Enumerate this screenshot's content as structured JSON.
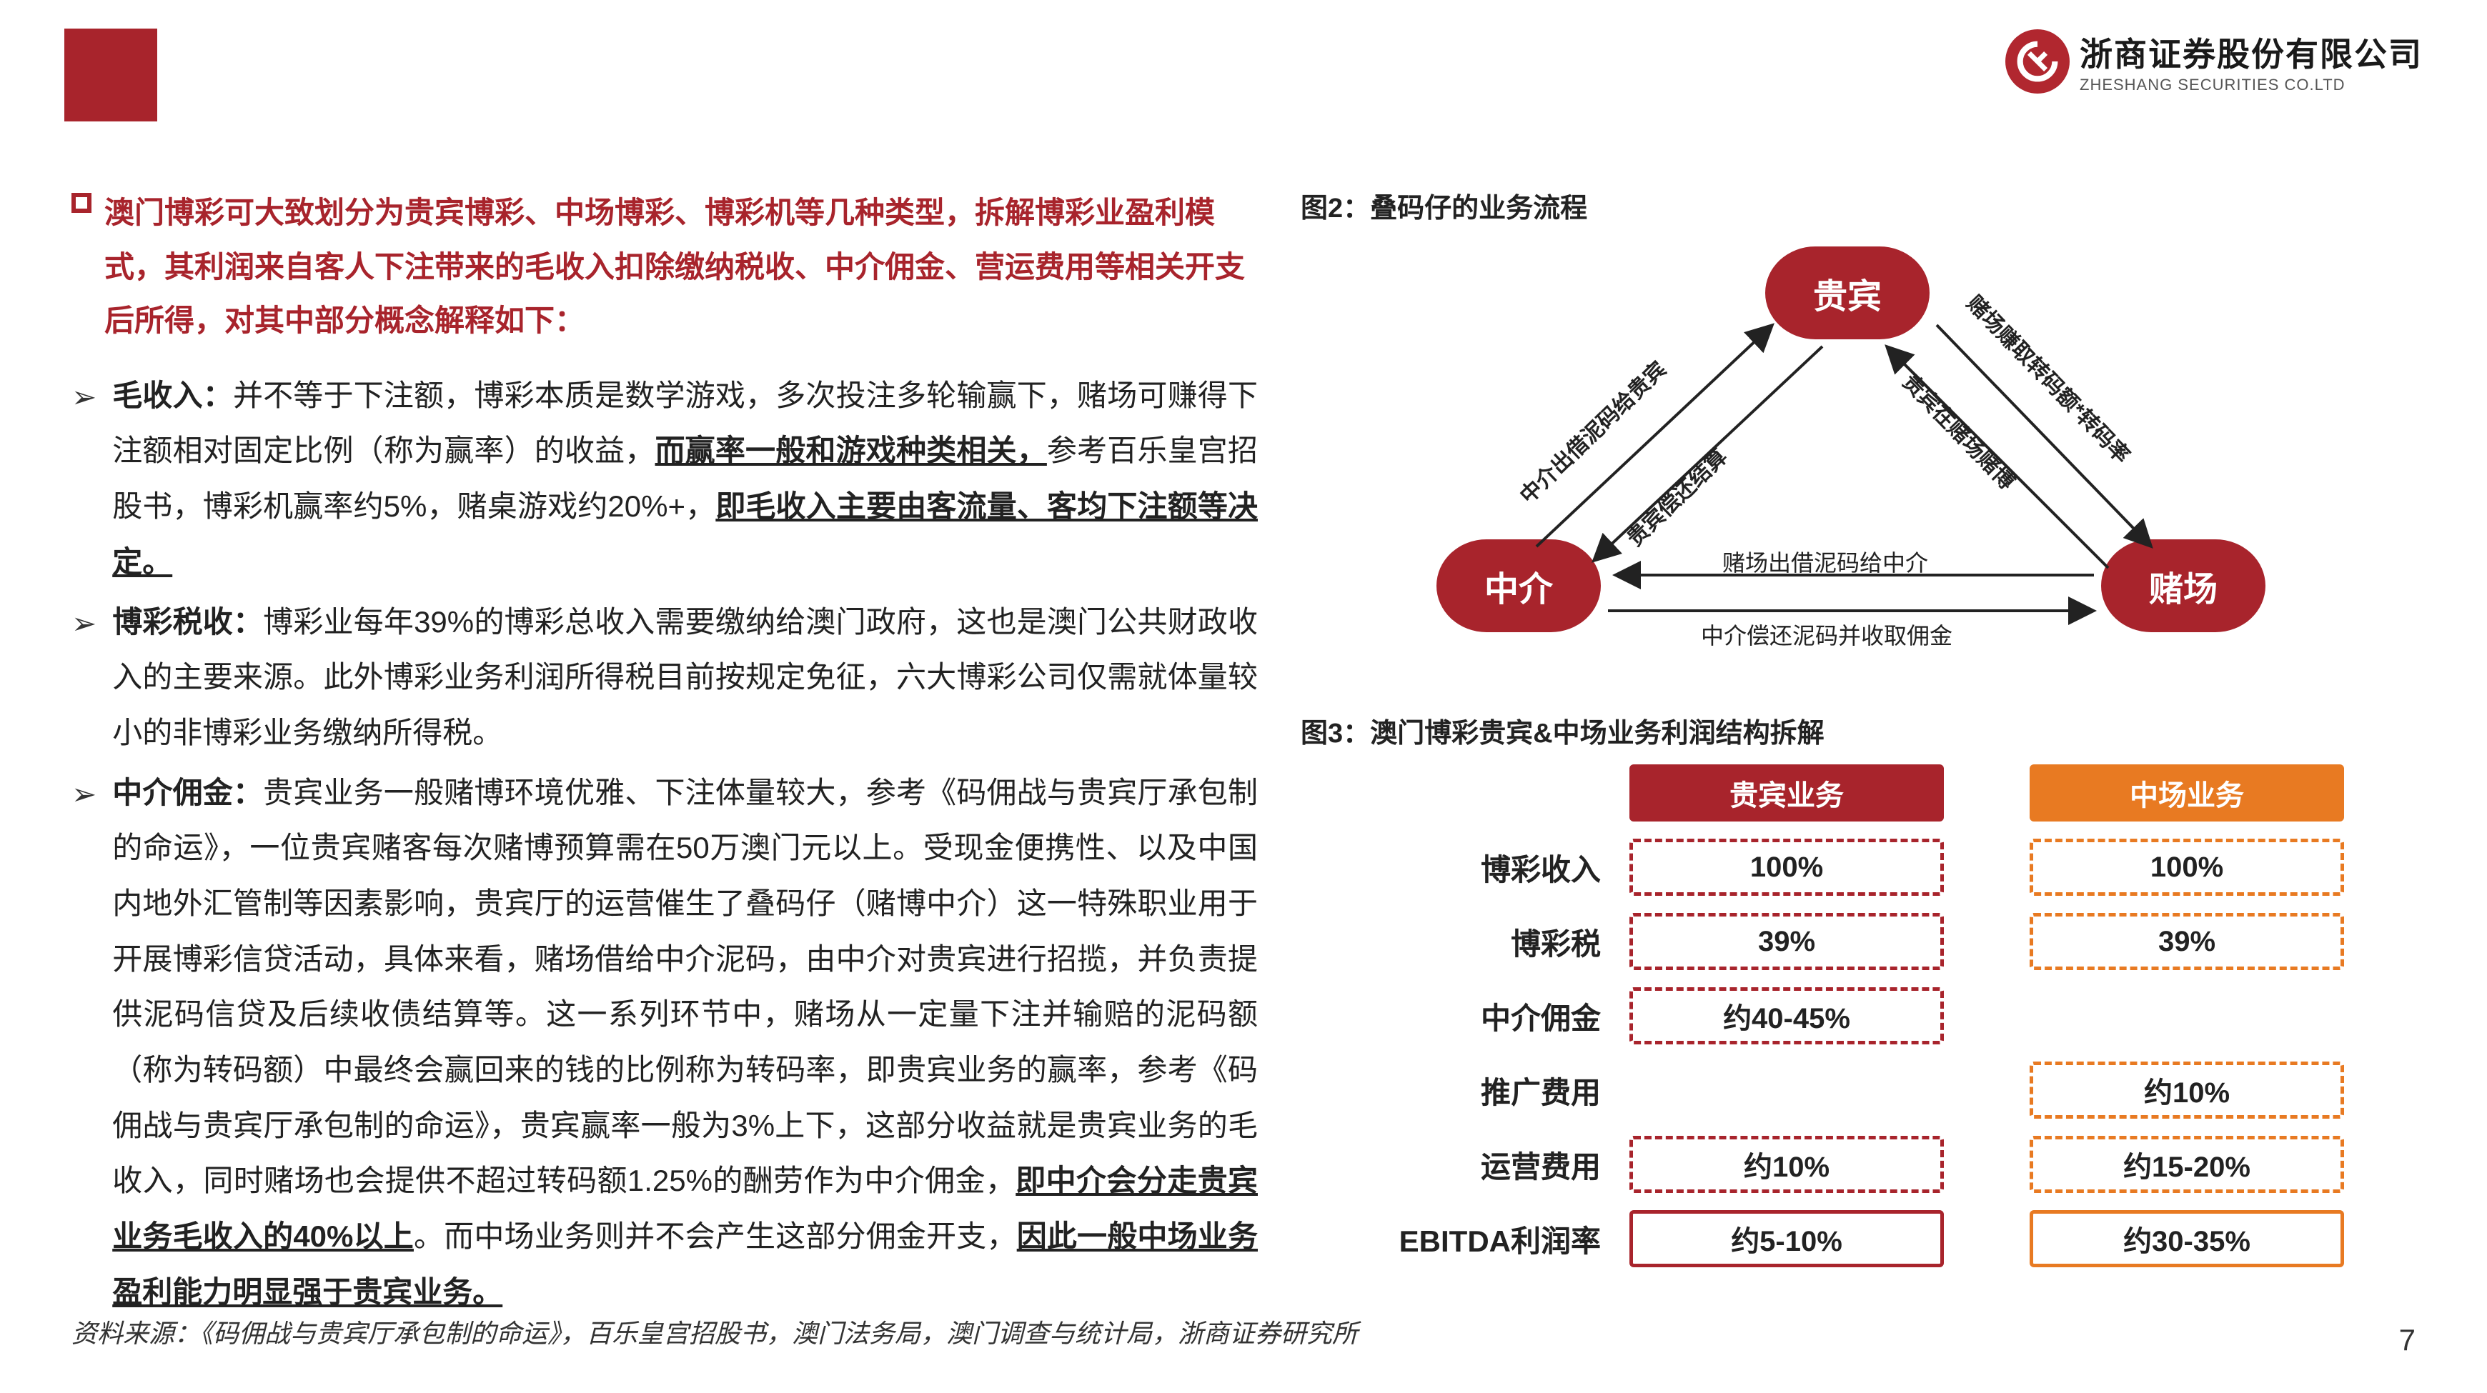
{
  "brand": {
    "cn": "浙商证券股份有限公司",
    "en": "ZHESHANG SECURITIES CO.LTD"
  },
  "intro": "澳门博彩可大致划分为贵宾博彩、中场博彩、博彩机等几种类型，拆解博彩业盈利模式，其利润来自客人下注带来的毛收入扣除缴纳税收、中介佣金、营运费用等相关开支后所得，对其中部分概念解释如下：",
  "bullets": {
    "b1": {
      "head": "毛收入：",
      "t1": "并不等于下注额，博彩本质是数学游戏，多次投注多轮输赢下，赌场可赚得下注额相对固定比例（称为赢率）的收益，",
      "u1": "而赢率一般和游戏种类相关，",
      "t2": "参考百乐皇宫招股书，博彩机赢率约5%，赌桌游戏约20%+，",
      "u2": "即毛收入主要由客流量、客均下注额等决定。"
    },
    "b2": {
      "head": "博彩税收：",
      "t1": "博彩业每年39%的博彩总收入需要缴纳给澳门政府，这也是澳门公共财政收入的主要来源。此外博彩业务利润所得税目前按规定免征，六大博彩公司仅需就体量较小的非博彩业务缴纳所得税。"
    },
    "b3": {
      "head": "中介佣金：",
      "t1": "贵宾业务一般赌博环境优雅、下注体量较大，参考《码佣战与贵宾厅承包制的命运》，一位贵宾赌客每次赌博预算需在50万澳门元以上。受现金便携性、以及中国内地外汇管制等因素影响，贵宾厅的运营催生了叠码仔（赌博中介）这一特殊职业用于开展博彩信贷活动，具体来看，赌场借给中介泥码，由中介对贵宾进行招揽，并负责提供泥码信贷及后续收债结算等。这一系列环节中，赌场从一定量下注并输赔的泥码额（称为转码额）中最终会赢回来的钱的比例称为转码率，即贵宾业务的赢率，参考《码佣战与贵宾厅承包制的命运》，贵宾赢率一般为3%上下，这部分收益就是贵宾业务的毛收入，同时赌场也会提供不超过转码额1.25%的酬劳作为中介佣金，",
      "u1": "即中介会分走贵宾业务毛收入的40%以上",
      "t2": "。而中场业务则并不会产生这部分佣金开支，",
      "u2": "因此一般中场业务盈利能力明显强于贵宾业务。"
    }
  },
  "fig2": {
    "title": "图2：叠码仔的业务流程",
    "nodes": {
      "vip": "贵宾",
      "agent": "中介",
      "casino": "赌场"
    },
    "edges": {
      "e1": "中介出借泥码给贵宾",
      "e2": "贵宾偿还结算",
      "e3": "赌场赚取转码额*转码率",
      "e4": "贵宾在赌场赌博",
      "e5": "赌场出借泥码给中介",
      "e6": "中介偿还泥码并收取佣金"
    },
    "style": {
      "node_color": "#a8242c",
      "node_text_color": "#ffffff",
      "edge_color": "#222222",
      "label_fontsize": 30
    }
  },
  "fig3": {
    "title": "图3：澳门博彩贵宾&中场业务利润结构拆解",
    "col_headers": {
      "vip": "贵宾业务",
      "mass": "中场业务"
    },
    "rows": [
      {
        "label": "博彩收入",
        "vip": "100%",
        "mass": "100%",
        "vip_style": "box-red-dash",
        "mass_style": "box-org-dash"
      },
      {
        "label": "博彩税",
        "vip": "39%",
        "mass": "39%",
        "vip_style": "box-red-dash",
        "mass_style": "box-org-dash"
      },
      {
        "label": "中介佣金",
        "vip": "约40-45%",
        "mass": "",
        "vip_style": "box-red-dash",
        "mass_style": "box-empty"
      },
      {
        "label": "推广费用",
        "vip": "",
        "mass": "约10%",
        "vip_style": "box-empty",
        "mass_style": "box-org-dash"
      },
      {
        "label": "运营费用",
        "vip": "约10%",
        "mass": "约15-20%",
        "vip_style": "box-red-dash",
        "mass_style": "box-org-dash"
      },
      {
        "label": "EBITDA利润率",
        "vip": "约5-10%",
        "mass": "约30-35%",
        "vip_style": "box-red-solid",
        "mass_style": "box-org-solid"
      }
    ],
    "style": {
      "vip_header_bg": "#a8242c",
      "mass_header_bg": "#e87a22",
      "dash_red": "#a8242c",
      "dash_orange": "#e87a22",
      "text_color": "#222222",
      "cell_fontsize": 40,
      "label_fontsize": 42
    }
  },
  "source": "资料来源：《码佣战与贵宾厅承包制的命运》，百乐皇宫招股书，澳门法务局，澳门调查与统计局，浙商证券研究所",
  "page": "7"
}
